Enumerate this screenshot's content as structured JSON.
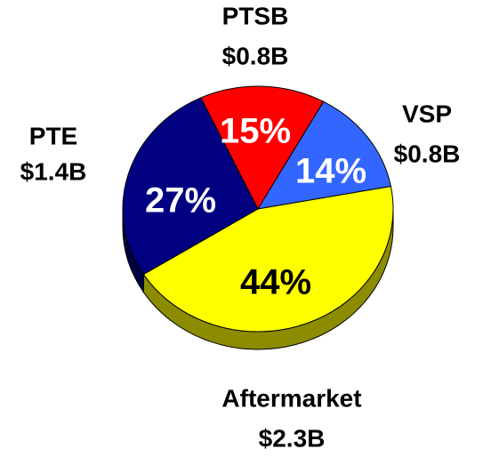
{
  "chart_data": {
    "type": "pie",
    "categories": [
      "PTSB",
      "VSP",
      "Aftermarket",
      "PTE"
    ],
    "values": [
      15,
      14,
      44,
      27
    ],
    "value_labels": [
      "15%",
      "14%",
      "44%",
      "27%"
    ],
    "amount_labels": [
      "$0.8B",
      "$0.8B",
      "$2.3B",
      "$1.4B"
    ],
    "colors": [
      "#ff0000",
      "#3366ff",
      "#ffff00",
      "#000080"
    ],
    "side_colors": [
      "#800000",
      "#1a3380",
      "#8c8c00",
      "#000040"
    ],
    "label_colors": [
      "#ffffff",
      "#ffffff",
      "#000000",
      "#ffffff"
    ]
  }
}
